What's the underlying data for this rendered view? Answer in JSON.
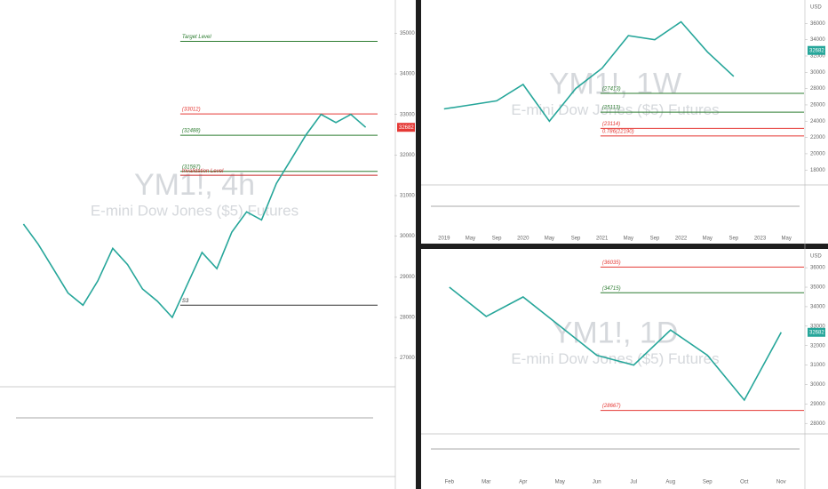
{
  "chart_data": [
    {
      "type": "line",
      "title": "YM1!, 4h",
      "subtitle": "E-mini Dow Jones ($5) Futures",
      "values": [
        30300,
        29800,
        29200,
        28600,
        28300,
        28900,
        29700,
        29300,
        28700,
        28400,
        28000,
        28800,
        29600,
        29200,
        30100,
        30600,
        30400,
        31300,
        31900,
        32500,
        33000,
        32800,
        33000,
        32682
      ],
      "color": "#26a69a",
      "ylim": [
        26400,
        35600
      ],
      "yticks": [
        27000,
        28000,
        29000,
        30000,
        31000,
        32000,
        33000,
        34000,
        35000
      ],
      "last_price": 32682,
      "levels": [
        {
          "value": 34800,
          "label": "Target Level",
          "color": "#2e7d32"
        },
        {
          "value": 33012,
          "label": "(33012)",
          "color": "#e53935"
        },
        {
          "value": 32488,
          "label": "(32488)",
          "color": "#2e7d32"
        },
        {
          "value": 31597,
          "label": "(31597)",
          "color": "#2e7d32"
        },
        {
          "value": 31500,
          "label": "Invalidation Level",
          "color": "#c62828"
        },
        {
          "value": 28300,
          "label": "S3",
          "color": "#333333"
        }
      ],
      "grid": false
    },
    {
      "type": "line",
      "title": "YM1!, 1W",
      "subtitle": "E-mini Dow Jones ($5) Futures",
      "categories": [
        "2019",
        "May",
        "Sep",
        "2020",
        "May",
        "Sep",
        "2021",
        "May",
        "Sep",
        "2022",
        "May",
        "Sep",
        "2023",
        "May"
      ],
      "values": [
        25500,
        26000,
        26500,
        28500,
        24000,
        28000,
        30500,
        34500,
        34000,
        36200,
        32500,
        29500,
        null,
        null
      ],
      "color": "#26a69a",
      "ylim": [
        16500,
        38000
      ],
      "yticks": [
        18000,
        20000,
        22000,
        24000,
        26000,
        28000,
        30000,
        32000,
        34000,
        36000
      ],
      "axis_unit": "USD",
      "last_price": 32682,
      "levels": [
        {
          "value": 27413,
          "label": "(27413)",
          "color": "#2e7d32"
        },
        {
          "value": 25113,
          "label": "(25113)",
          "color": "#2e7d32"
        },
        {
          "value": 23114,
          "label": "(23114)",
          "color": "#e53935"
        },
        {
          "value": 22190,
          "label": "0.786(22190)",
          "color": "#e53935"
        }
      ],
      "grid": false
    },
    {
      "type": "line",
      "title": "YM1!, 1D",
      "subtitle": "E-mini Dow Jones ($5) Futures",
      "categories": [
        "Feb",
        "Mar",
        "Apr",
        "May",
        "Jun",
        "Jul",
        "Aug",
        "Sep",
        "Oct",
        "Nov"
      ],
      "values": [
        35000,
        33500,
        34500,
        33000,
        31500,
        31000,
        32800,
        31500,
        29200,
        32682
      ],
      "color": "#26a69a",
      "ylim": [
        27600,
        36600
      ],
      "yticks": [
        28000,
        29000,
        30000,
        31000,
        32000,
        33000,
        34000,
        35000,
        36000
      ],
      "axis_unit": "USD",
      "last_price": 32682,
      "levels": [
        {
          "value": 36035,
          "label": "(36035)",
          "color": "#e53935"
        },
        {
          "value": 34715,
          "label": "(34715)",
          "color": "#2e7d32"
        },
        {
          "value": 28667,
          "label": "(28667)",
          "color": "#e53935"
        }
      ],
      "grid": false
    }
  ]
}
